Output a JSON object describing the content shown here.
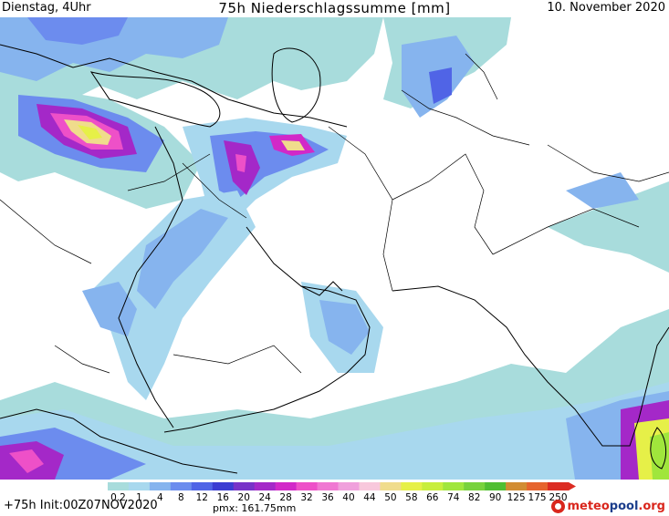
{
  "header": {
    "left": "Dienstag, 4Uhr",
    "title": "75h Niederschlagssumme [mm]",
    "date": "10. November 2020"
  },
  "legend": {
    "levels": [
      "0.2",
      "1",
      "4",
      "8",
      "12",
      "16",
      "20",
      "24",
      "28",
      "32",
      "36",
      "40",
      "44",
      "50",
      "58",
      "66",
      "74",
      "82",
      "90",
      "125",
      "175",
      "250"
    ],
    "colors": [
      "#a8dcdc",
      "#a8d8ee",
      "#86b4ee",
      "#6c8cee",
      "#5064e6",
      "#3c3cd2",
      "#7832c8",
      "#a428c8",
      "#d228c8",
      "#ee50c8",
      "#f078d2",
      "#f0a0dc",
      "#f8c8dc",
      "#f0dc8c",
      "#e6f048",
      "#c8ee3c",
      "#a0e63c",
      "#78d23c",
      "#50be32",
      "#d28c32",
      "#e6642d",
      "#dc2c22"
    ]
  },
  "footer": {
    "init": "+75h Init:00Z07NOV2020",
    "pmx": "pmx: 161.75mm",
    "brand_a": "meteo",
    "brand_b": "pool",
    "brand_c": ".org"
  }
}
